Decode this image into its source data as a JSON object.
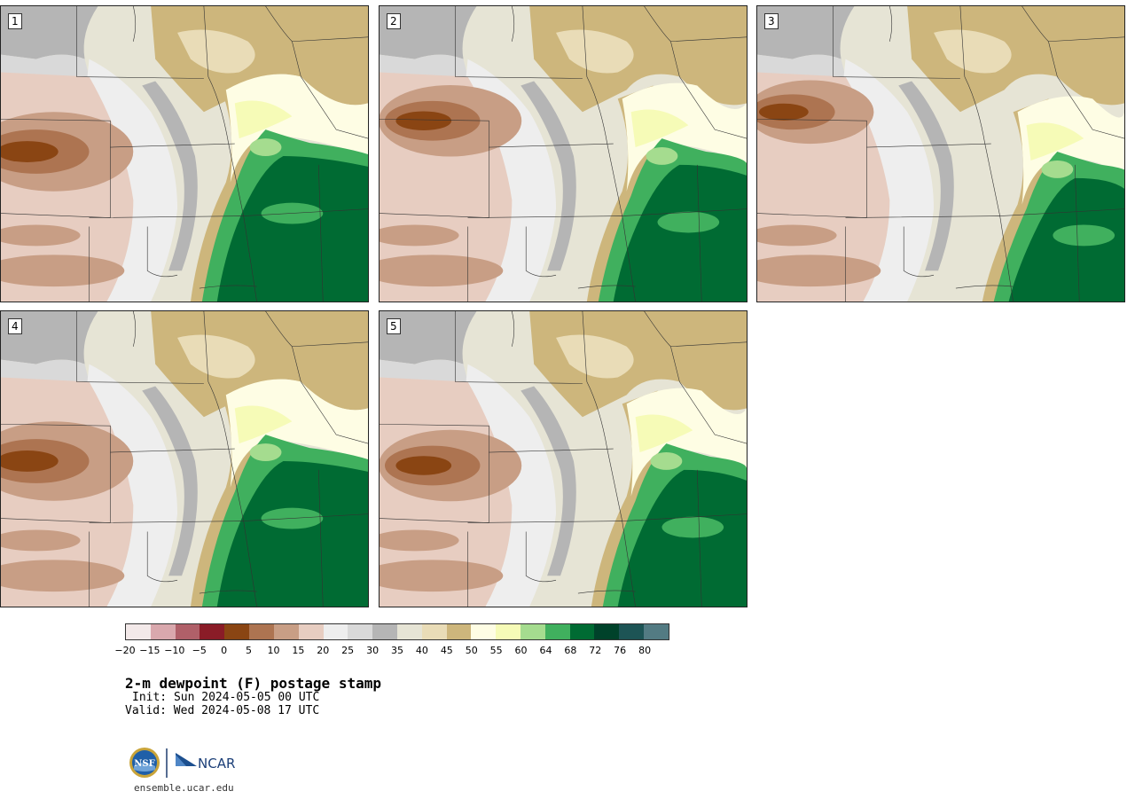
{
  "panels": [
    {
      "label": "1"
    },
    {
      "label": "2"
    },
    {
      "label": "3"
    },
    {
      "label": "4"
    },
    {
      "label": "5"
    }
  ],
  "colorbar": {
    "colors": [
      "#f3e9e9",
      "#d9a8ad",
      "#b06069",
      "#8a1c27",
      "#8a4513",
      "#ad7451",
      "#c89e85",
      "#e7cdc1",
      "#eeeeee",
      "#d9d9d9",
      "#b5b5b5",
      "#e6e4d5",
      "#e9dcb7",
      "#cdb67c",
      "#fefde4",
      "#f6fbb7",
      "#a5dc8f",
      "#40b05e",
      "#006b33",
      "#00422a",
      "#1d5455",
      "#537b83"
    ],
    "ticks": [
      "−20",
      "−15",
      "−10",
      "−5",
      "0",
      "5",
      "10",
      "15",
      "20",
      "25",
      "30",
      "35",
      "40",
      "45",
      "50",
      "55",
      "60",
      "64",
      "68",
      "72",
      "76",
      "80"
    ]
  },
  "title": "2-m dewpoint (F) postage stamp",
  "init": "Init: Sun 2024-05-05 00 UTC",
  "valid": "Valid: Wed 2024-05-08 17 UTC",
  "logos": {
    "nsf": "NSF",
    "ncar": "NCAR"
  },
  "site": "ensemble.ucar.edu"
}
